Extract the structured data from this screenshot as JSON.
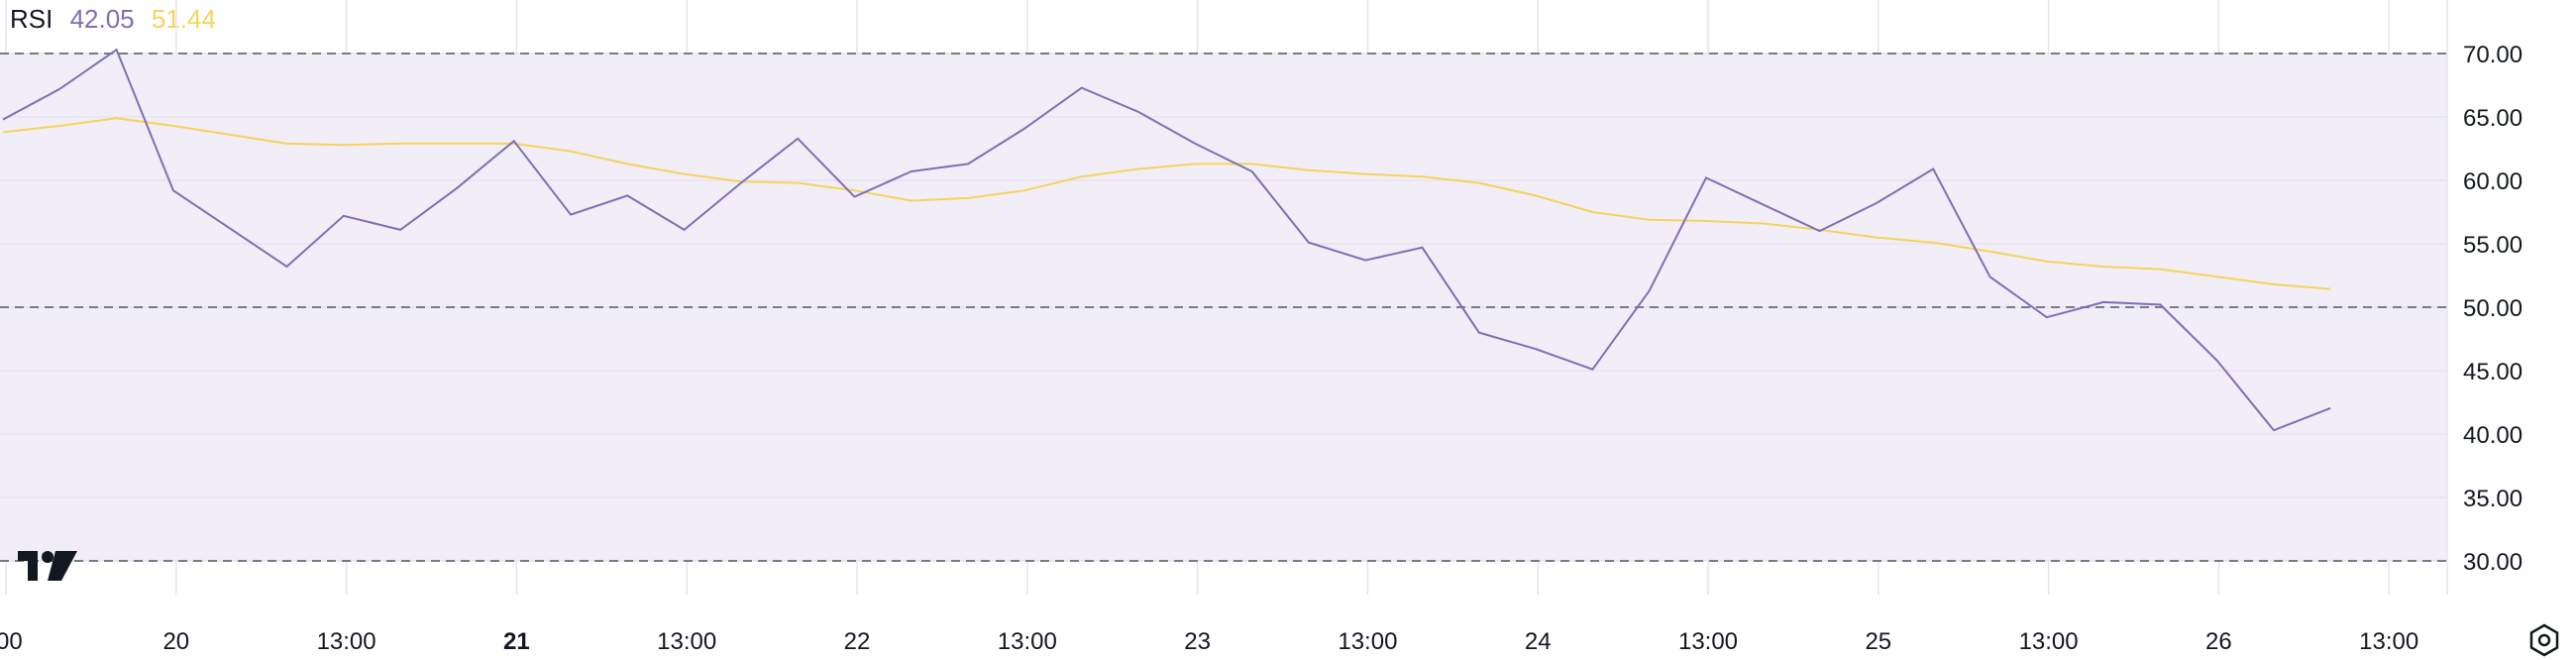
{
  "indicator": {
    "name": "RSI",
    "rsi_value": "42.05",
    "ma_value": "51.44"
  },
  "colors": {
    "rsi_line": "#7e6fb4",
    "ma_line": "#f6d35d",
    "band_fill": "#f1eef8",
    "grid": "#e6e3ef",
    "dashed": "#787b86",
    "text": "#131722"
  },
  "chart_data": {
    "type": "line",
    "ylim": [
      25,
      75
    ],
    "y_ticks": [
      "30.00",
      "35.00",
      "40.00",
      "45.00",
      "50.00",
      "55.00",
      "60.00",
      "65.00",
      "70.00"
    ],
    "band": [
      30,
      70
    ],
    "dashed_levels": [
      30,
      50,
      70
    ],
    "x_ticks": [
      {
        "label": ":00",
        "bold": false
      },
      {
        "label": "20",
        "bold": false
      },
      {
        "label": "13:00",
        "bold": false
      },
      {
        "label": "21",
        "bold": true
      },
      {
        "label": "13:00",
        "bold": false
      },
      {
        "label": "22",
        "bold": false
      },
      {
        "label": "13:00",
        "bold": false
      },
      {
        "label": "23",
        "bold": false
      },
      {
        "label": "13:00",
        "bold": false
      },
      {
        "label": "24",
        "bold": false
      },
      {
        "label": "13:00",
        "bold": false
      },
      {
        "label": "25",
        "bold": false
      },
      {
        "label": "13:00",
        "bold": false
      },
      {
        "label": "26",
        "bold": false
      },
      {
        "label": "13:00",
        "bold": false
      }
    ],
    "series": [
      {
        "values": [
          64.8,
          67.2,
          70.3,
          59.2,
          56.2,
          53.2,
          57.2,
          56.1,
          59.4,
          63.1,
          57.3,
          58.8,
          56.1,
          59.8,
          63.3,
          58.7,
          60.7,
          61.3,
          64.1,
          67.3,
          65.4,
          62.9,
          60.7,
          55.1,
          53.7,
          54.7,
          48.0,
          46.7,
          45.1,
          51.3,
          60.2,
          58.1,
          56.0,
          58.2,
          60.9,
          52.4,
          49.2,
          50.4,
          50.2,
          45.8,
          40.3,
          42.05
        ]
      },
      {
        "values": [
          63.8,
          64.3,
          64.9,
          64.3,
          63.6,
          62.9,
          62.8,
          62.9,
          62.9,
          62.9,
          62.3,
          61.3,
          60.5,
          59.9,
          59.8,
          59.2,
          58.4,
          58.6,
          59.2,
          60.3,
          60.9,
          61.3,
          61.3,
          60.8,
          60.5,
          60.3,
          59.8,
          58.8,
          57.5,
          56.9,
          56.8,
          56.6,
          56.1,
          55.5,
          55.1,
          54.4,
          53.6,
          53.2,
          53.0,
          52.4,
          51.8,
          51.44
        ]
      }
    ]
  }
}
